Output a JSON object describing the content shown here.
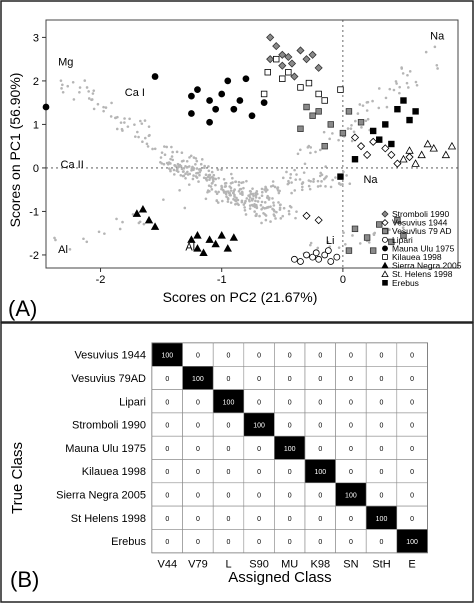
{
  "panelA": {
    "label": "(A)",
    "chart_data": {
      "type": "scatter",
      "xlabel": "Scores on PC2 (21.67%)",
      "ylabel": "Scores on PC1 (56.90%)",
      "xlim": [
        -2.45,
        0.95
      ],
      "ylim": [
        -2.3,
        3.4
      ],
      "xticks": [
        -2,
        -1,
        0
      ],
      "yticks": [
        -2,
        -1,
        0,
        1,
        2,
        3
      ],
      "loading_labels": [
        {
          "text": "Mg",
          "x": -2.35,
          "y": 2.35
        },
        {
          "text": "Ca I",
          "x": -1.8,
          "y": 1.65
        },
        {
          "text": "Ca II",
          "x": -2.33,
          "y": 0.0
        },
        {
          "text": "Al",
          "x": -2.35,
          "y": -1.95
        },
        {
          "text": "Al",
          "x": -1.3,
          "y": -1.9
        },
        {
          "text": "Na",
          "x": 0.72,
          "y": 2.95
        },
        {
          "text": "Na",
          "x": 0.17,
          "y": -0.35
        },
        {
          "text": "Li",
          "x": -0.14,
          "y": -1.75
        }
      ],
      "legend_position": "lower-right",
      "series": [
        {
          "name": "Stromboli 1990",
          "marker": "diamond",
          "color": "#8a8a8a"
        },
        {
          "name": "Vesuvius 1944",
          "marker": "diamond-open",
          "color": "#000000"
        },
        {
          "name": "Vesuvius 79 AD",
          "marker": "square",
          "color": "#8a8a8a"
        },
        {
          "name": "Lipari",
          "marker": "circle-open",
          "color": "#000000"
        },
        {
          "name": "Mauna Ulu 1975",
          "marker": "circle",
          "color": "#000000"
        },
        {
          "name": "Kilauea 1998",
          "marker": "square-open",
          "color": "#000000"
        },
        {
          "name": "Sierra Negra 2005",
          "marker": "triangle",
          "color": "#000000"
        },
        {
          "name": "St. Helens 1998",
          "marker": "triangle-open",
          "color": "#000000"
        },
        {
          "name": "Erebus",
          "marker": "square",
          "color": "#000000"
        }
      ],
      "clusters": {
        "Stromboli 1990": [
          [
            -0.6,
            3.0
          ],
          [
            -0.55,
            2.8
          ],
          [
            -0.45,
            2.55
          ],
          [
            -0.5,
            2.35
          ],
          [
            -0.3,
            2.5
          ],
          [
            -0.4,
            2.1
          ],
          [
            -0.2,
            2.3
          ],
          [
            -0.6,
            2.5
          ],
          [
            -0.35,
            2.7
          ],
          [
            -0.25,
            2.6
          ],
          [
            -0.5,
            2.6
          ],
          [
            -0.42,
            2.4
          ]
        ],
        "Vesuvius 1944": [
          [
            0.1,
            0.7
          ],
          [
            0.25,
            0.6
          ],
          [
            0.4,
            0.3
          ],
          [
            0.55,
            0.25
          ],
          [
            0.35,
            0.45
          ],
          [
            0.2,
            0.3
          ],
          [
            -0.2,
            -1.2
          ],
          [
            -0.3,
            -1.1
          ],
          [
            0.45,
            0.1
          ],
          [
            0.15,
            0.5
          ]
        ],
        "Vesuvius 79 AD": [
          [
            -0.25,
            1.2
          ],
          [
            -0.1,
            1.0
          ],
          [
            0.05,
            1.3
          ],
          [
            -0.35,
            0.9
          ],
          [
            0.0,
            0.8
          ],
          [
            -0.15,
            0.5
          ],
          [
            0.1,
            -1.4
          ],
          [
            0.2,
            -1.6
          ],
          [
            0.35,
            -1.45
          ],
          [
            0.4,
            -1.7
          ],
          [
            0.25,
            -1.9
          ],
          [
            0.45,
            -1.2
          ],
          [
            0.05,
            -1.9
          ],
          [
            0.3,
            -1.3
          ],
          [
            0.5,
            -1.55
          ],
          [
            -0.3,
            1.4
          ],
          [
            -0.2,
            1.3
          ],
          [
            0.15,
            1.05
          ]
        ],
        "Lipari": [
          [
            -0.25,
            -2.05
          ],
          [
            -0.2,
            -2.1
          ],
          [
            -0.15,
            -2.0
          ],
          [
            -0.1,
            -2.15
          ],
          [
            -0.3,
            -2.0
          ],
          [
            -0.05,
            -2.05
          ],
          [
            -0.4,
            -2.1
          ],
          [
            -0.22,
            -1.95
          ],
          [
            -0.12,
            -1.9
          ],
          [
            -0.35,
            -2.15
          ]
        ],
        "Mauna Ulu 1975": [
          [
            -1.55,
            2.1
          ],
          [
            -1.25,
            1.65
          ],
          [
            -1.25,
            1.25
          ],
          [
            -1.1,
            1.55
          ],
          [
            -1.05,
            1.35
          ],
          [
            -0.95,
            2.0
          ],
          [
            -0.85,
            1.55
          ],
          [
            -0.9,
            1.35
          ],
          [
            -1.2,
            1.8
          ],
          [
            -0.75,
            1.2
          ],
          [
            -0.65,
            1.5
          ],
          [
            -1.1,
            1.05
          ],
          [
            -0.8,
            2.05
          ],
          [
            -2.45,
            1.4
          ],
          [
            -1.0,
            1.7
          ]
        ],
        "Kilauea 1998": [
          [
            -0.55,
            2.5
          ],
          [
            -0.45,
            2.2
          ],
          [
            -0.35,
            1.85
          ],
          [
            -0.65,
            1.7
          ],
          [
            -0.15,
            1.55
          ],
          [
            -0.28,
            1.95
          ],
          [
            -0.5,
            2.05
          ],
          [
            -0.62,
            2.2
          ],
          [
            -0.02,
            1.8
          ],
          [
            -0.2,
            1.7
          ]
        ],
        "Sierra Negra 2005": [
          [
            -1.7,
            -1.05
          ],
          [
            -1.6,
            -1.2
          ],
          [
            -1.65,
            -0.95
          ],
          [
            -1.55,
            -1.35
          ],
          [
            -1.2,
            -1.55
          ],
          [
            -1.1,
            -1.65
          ],
          [
            -1.0,
            -1.55
          ],
          [
            -1.05,
            -1.75
          ],
          [
            -0.95,
            -1.85
          ],
          [
            -1.15,
            -1.95
          ],
          [
            -0.9,
            -1.6
          ],
          [
            -1.2,
            -1.85
          ],
          [
            -1.25,
            -1.65
          ]
        ],
        "St. Helens 1998": [
          [
            0.55,
            0.4
          ],
          [
            0.65,
            0.3
          ],
          [
            0.75,
            0.45
          ],
          [
            0.85,
            0.3
          ],
          [
            0.9,
            0.5
          ],
          [
            0.6,
            0.1
          ],
          [
            0.7,
            0.55
          ],
          [
            0.5,
            0.2
          ]
        ],
        "Erebus": [
          [
            0.5,
            1.55
          ],
          [
            0.6,
            1.3
          ],
          [
            0.35,
            1.0
          ],
          [
            0.4,
            0.55
          ],
          [
            0.25,
            0.85
          ],
          [
            0.1,
            0.2
          ],
          [
            -0.02,
            -0.2
          ],
          [
            0.45,
            1.35
          ],
          [
            0.3,
            0.65
          ],
          [
            0.55,
            1.1
          ]
        ]
      }
    }
  },
  "panelB": {
    "label": "(B)",
    "chart_data": {
      "type": "heatmap",
      "title": "",
      "xlabel": "Assigned Class",
      "ylabel": "True Class",
      "rows": [
        "Vesuvius 1944",
        "Vesuvius 79AD",
        "Lipari",
        "Stromboli 1990",
        "Mauna Ulu 1975",
        "Kilauea 1998",
        "Sierra Negra 2005",
        "St Helens 1998",
        "Erebus"
      ],
      "cols": [
        "V44",
        "V79",
        "L",
        "S90",
        "MU",
        "K98",
        "SN",
        "StH",
        "E"
      ],
      "matrix": [
        [
          100,
          0,
          0,
          0,
          0,
          0,
          0,
          0,
          0
        ],
        [
          0,
          100,
          0,
          0,
          0,
          0,
          0,
          0,
          0
        ],
        [
          0,
          0,
          100,
          0,
          0,
          0,
          0,
          0,
          0
        ],
        [
          0,
          0,
          0,
          100,
          0,
          0,
          0,
          0,
          0
        ],
        [
          0,
          0,
          0,
          0,
          100,
          0,
          0,
          0,
          0
        ],
        [
          0,
          0,
          0,
          0,
          0,
          100,
          0,
          0,
          0
        ],
        [
          0,
          0,
          0,
          0,
          0,
          0,
          100,
          0,
          0
        ],
        [
          0,
          0,
          0,
          0,
          0,
          0,
          0,
          100,
          0
        ],
        [
          0,
          0,
          0,
          0,
          0,
          0,
          0,
          0,
          100
        ]
      ]
    }
  }
}
